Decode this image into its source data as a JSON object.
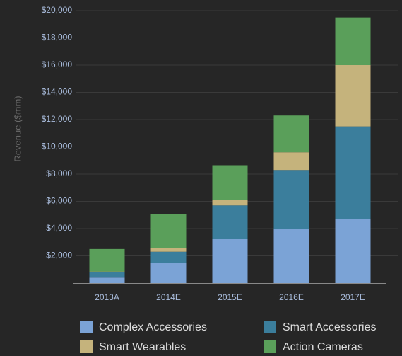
{
  "chart_data": {
    "type": "stacked_bar",
    "y_label": "Revenue ($mm)",
    "categories": [
      "2013A",
      "2014E",
      "2015E",
      "2016E",
      "2017E"
    ],
    "series": [
      {
        "name": "Complex Accessories",
        "color": "#7ba3d6",
        "values": [
          400,
          1500,
          3250,
          4000,
          4700
        ]
      },
      {
        "name": "Smart Accessories",
        "color": "#3b7e9c",
        "values": [
          400,
          800,
          2450,
          4300,
          6800
        ]
      },
      {
        "name": "Smart Wearables",
        "color": "#c5b37c",
        "values": [
          50,
          250,
          400,
          1300,
          4500
        ]
      },
      {
        "name": "Action Cameras",
        "color": "#5a9f5a",
        "values": [
          1650,
          2500,
          2550,
          2700,
          3500
        ]
      }
    ],
    "ylim": [
      0,
      20000
    ],
    "yticks": [
      {
        "value": 2000,
        "label": "$2,000"
      },
      {
        "value": 4000,
        "label": "$4,000"
      },
      {
        "value": 6000,
        "label": "$6,000"
      },
      {
        "value": 8000,
        "label": "$8,000"
      },
      {
        "value": 10000,
        "label": "$10,000"
      },
      {
        "value": 12000,
        "label": "$12,000"
      },
      {
        "value": 14000,
        "label": "$14,000"
      },
      {
        "value": 16000,
        "label": "$16,000"
      },
      {
        "value": 18000,
        "label": "$18,000"
      },
      {
        "value": 20000,
        "label": "$20,000"
      }
    ],
    "grid": true
  }
}
